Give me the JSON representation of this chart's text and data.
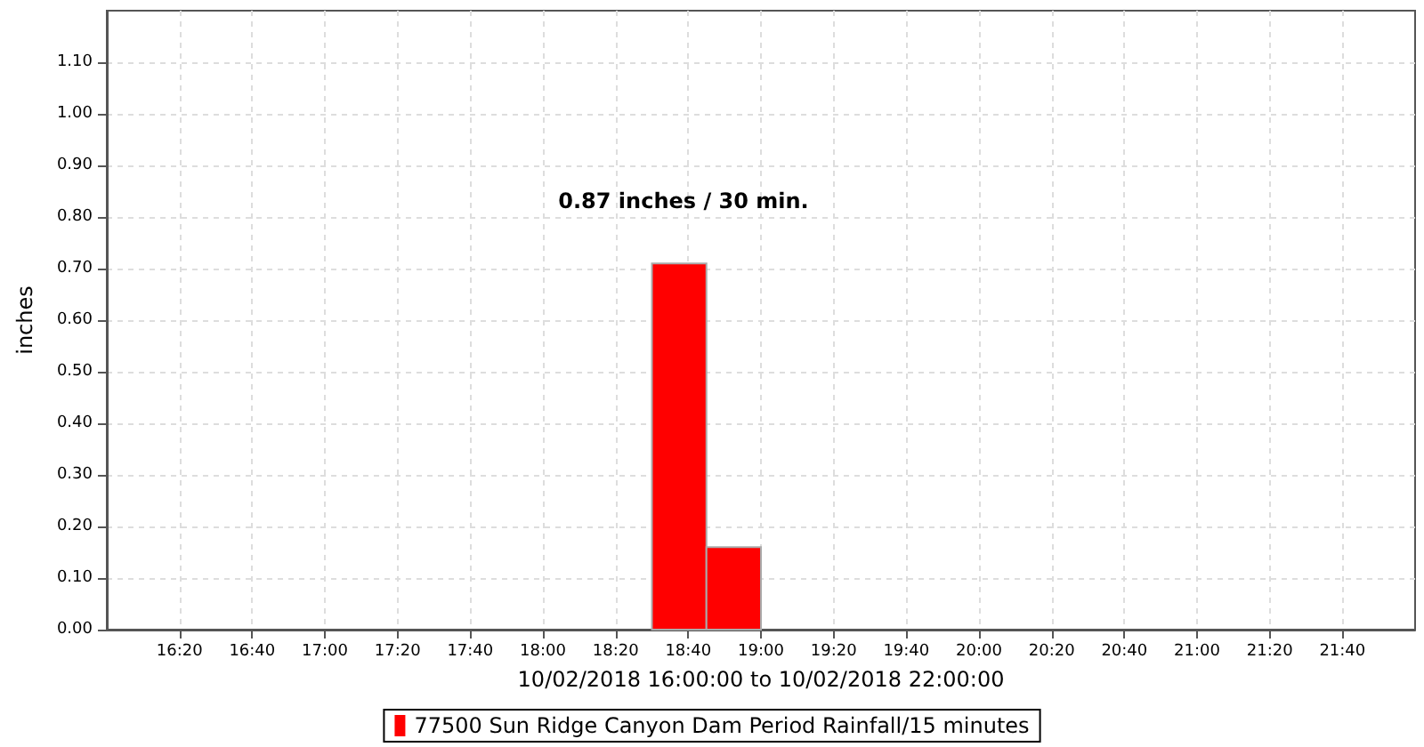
{
  "chart_data": {
    "type": "histogram",
    "xlabel": "10/02/2018 16:00:00 to 10/02/2018 22:00:00",
    "ylabel": "inches",
    "bins": [
      18.5,
      18.75,
      19
    ],
    "series": [
      {
        "name": "77500 Sun Ridge Canyon Dam Period Rainfall/15 minutes",
        "color": "#ff0000",
        "values": [
          0.71,
          0.16
        ]
      }
    ],
    "xlim": [
      16,
      22
    ],
    "xticks": [
      {
        "value": 16.3333,
        "label": "16:20"
      },
      {
        "value": 16.6667,
        "label": "16:40"
      },
      {
        "value": 17,
        "label": "17:00"
      },
      {
        "value": 17.3333,
        "label": "17:20"
      },
      {
        "value": 17.6667,
        "label": "17:40"
      },
      {
        "value": 18,
        "label": "18:00"
      },
      {
        "value": 18.3333,
        "label": "18:20"
      },
      {
        "value": 18.6667,
        "label": "18:40"
      },
      {
        "value": 19,
        "label": "19:00"
      },
      {
        "value": 19.3333,
        "label": "19:20"
      },
      {
        "value": 19.6667,
        "label": "19:40"
      },
      {
        "value": 20,
        "label": "20:00"
      },
      {
        "value": 20.3333,
        "label": "20:20"
      },
      {
        "value": 20.6667,
        "label": "20:40"
      },
      {
        "value": 21,
        "label": "21:00"
      },
      {
        "value": 21.3333,
        "label": "21:20"
      },
      {
        "value": 21.6667,
        "label": "21:40"
      }
    ],
    "ylim": [
      0,
      1.2
    ],
    "yticks": [
      {
        "value": 0,
        "label": "0.00"
      },
      {
        "value": 0.1,
        "label": "0.10"
      },
      {
        "value": 0.2,
        "label": "0.20"
      },
      {
        "value": 0.3,
        "label": "0.30"
      },
      {
        "value": 0.4,
        "label": "0.40"
      },
      {
        "value": 0.5,
        "label": "0.50"
      },
      {
        "value": 0.6,
        "label": "0.60"
      },
      {
        "value": 0.7,
        "label": "0.70"
      },
      {
        "value": 0.8,
        "label": "0.80"
      },
      {
        "value": 0.9,
        "label": "0.90"
      },
      {
        "value": 1,
        "label": "1.00"
      },
      {
        "value": 1.1,
        "label": "1.10"
      }
    ],
    "annotations": [
      "0.87 inches / 30 min."
    ],
    "grid": true,
    "legend": "bottom"
  }
}
